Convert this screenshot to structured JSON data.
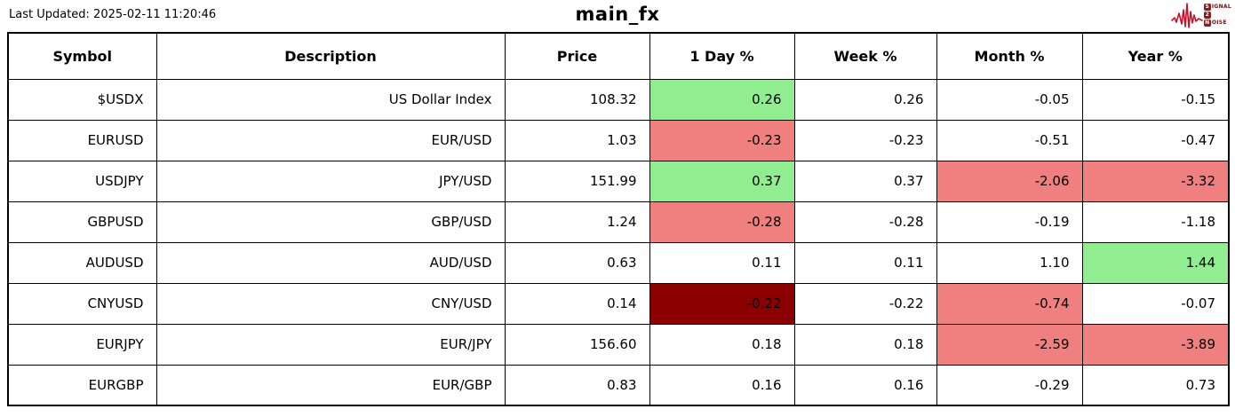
{
  "header": {
    "last_updated": "Last Updated: 2025-02-11 11:20:46",
    "title": "main_fx",
    "logo": {
      "lines": [
        {
          "initial": "S",
          "rest": "IGNAL"
        },
        {
          "initial": "2",
          "rest": ""
        },
        {
          "initial": "N",
          "rest": "OISE"
        }
      ],
      "waveform_color": "#c8102e"
    }
  },
  "colors": {
    "positive": "#90EE90",
    "negative": "#F08080",
    "strong_negative": "#8B0000"
  },
  "table": {
    "columns": [
      "Symbol",
      "Description",
      "Price",
      "1 Day %",
      "Week %",
      "Month %",
      "Year %"
    ],
    "rows": [
      {
        "cells": [
          {
            "value": "$USDX"
          },
          {
            "value": "US Dollar Index"
          },
          {
            "value": "108.32"
          },
          {
            "value": "0.26",
            "highlight": "positive"
          },
          {
            "value": "0.26"
          },
          {
            "value": "-0.05"
          },
          {
            "value": "-0.15"
          }
        ]
      },
      {
        "cells": [
          {
            "value": "EURUSD"
          },
          {
            "value": "EUR/USD"
          },
          {
            "value": "1.03"
          },
          {
            "value": "-0.23",
            "highlight": "negative"
          },
          {
            "value": "-0.23"
          },
          {
            "value": "-0.51"
          },
          {
            "value": "-0.47"
          }
        ]
      },
      {
        "cells": [
          {
            "value": "USDJPY"
          },
          {
            "value": "JPY/USD"
          },
          {
            "value": "151.99"
          },
          {
            "value": "0.37",
            "highlight": "positive"
          },
          {
            "value": "0.37"
          },
          {
            "value": "-2.06",
            "highlight": "negative"
          },
          {
            "value": "-3.32",
            "highlight": "negative"
          }
        ]
      },
      {
        "cells": [
          {
            "value": "GBPUSD"
          },
          {
            "value": "GBP/USD"
          },
          {
            "value": "1.24"
          },
          {
            "value": "-0.28",
            "highlight": "negative"
          },
          {
            "value": "-0.28"
          },
          {
            "value": "-0.19"
          },
          {
            "value": "-1.18"
          }
        ]
      },
      {
        "cells": [
          {
            "value": "AUDUSD"
          },
          {
            "value": "AUD/USD"
          },
          {
            "value": "0.63"
          },
          {
            "value": "0.11"
          },
          {
            "value": "0.11"
          },
          {
            "value": "1.10"
          },
          {
            "value": "1.44",
            "highlight": "positive"
          }
        ]
      },
      {
        "cells": [
          {
            "value": "CNYUSD"
          },
          {
            "value": "CNY/USD"
          },
          {
            "value": "0.14"
          },
          {
            "value": "-0.22",
            "highlight": "strong_negative"
          },
          {
            "value": "-0.22"
          },
          {
            "value": "-0.74",
            "highlight": "negative"
          },
          {
            "value": "-0.07"
          }
        ]
      },
      {
        "cells": [
          {
            "value": "EURJPY"
          },
          {
            "value": "EUR/JPY"
          },
          {
            "value": "156.60"
          },
          {
            "value": "0.18"
          },
          {
            "value": "0.18"
          },
          {
            "value": "-2.59",
            "highlight": "negative"
          },
          {
            "value": "-3.89",
            "highlight": "negative"
          }
        ]
      },
      {
        "cells": [
          {
            "value": "EURGBP"
          },
          {
            "value": "EUR/GBP"
          },
          {
            "value": "0.83"
          },
          {
            "value": "0.16"
          },
          {
            "value": "0.16"
          },
          {
            "value": "-0.29"
          },
          {
            "value": "0.73"
          }
        ]
      }
    ]
  },
  "chart_data": {
    "type": "table",
    "title": "main_fx",
    "last_updated": "2025-02-11 11:20:46",
    "columns": [
      "Symbol",
      "Description",
      "Price",
      "1 Day %",
      "Week %",
      "Month %",
      "Year %"
    ],
    "rows": [
      [
        "$USDX",
        "US Dollar Index",
        108.32,
        0.26,
        0.26,
        -0.05,
        -0.15
      ],
      [
        "EURUSD",
        "EUR/USD",
        1.03,
        -0.23,
        -0.23,
        -0.51,
        -0.47
      ],
      [
        "USDJPY",
        "JPY/USD",
        151.99,
        0.37,
        0.37,
        -2.06,
        -3.32
      ],
      [
        "GBPUSD",
        "GBP/USD",
        1.24,
        -0.28,
        -0.28,
        -0.19,
        -1.18
      ],
      [
        "AUDUSD",
        "AUD/USD",
        0.63,
        0.11,
        0.11,
        1.1,
        1.44
      ],
      [
        "CNYUSD",
        "CNY/USD",
        0.14,
        -0.22,
        -0.22,
        -0.74,
        -0.07
      ],
      [
        "EURJPY",
        "EUR/JPY",
        156.6,
        0.18,
        0.18,
        -2.59,
        -3.89
      ],
      [
        "EURGBP",
        "EUR/GBP",
        0.83,
        0.16,
        0.16,
        -0.29,
        0.73
      ]
    ],
    "highlighted_cells": [
      {
        "row": "$USDX",
        "column": "1 Day %",
        "color": "#90EE90"
      },
      {
        "row": "EURUSD",
        "column": "1 Day %",
        "color": "#F08080"
      },
      {
        "row": "USDJPY",
        "column": "1 Day %",
        "color": "#90EE90"
      },
      {
        "row": "USDJPY",
        "column": "Month %",
        "color": "#F08080"
      },
      {
        "row": "USDJPY",
        "column": "Year %",
        "color": "#F08080"
      },
      {
        "row": "GBPUSD",
        "column": "1 Day %",
        "color": "#F08080"
      },
      {
        "row": "AUDUSD",
        "column": "Year %",
        "color": "#90EE90"
      },
      {
        "row": "CNYUSD",
        "column": "1 Day %",
        "color": "#8B0000"
      },
      {
        "row": "CNYUSD",
        "column": "Month %",
        "color": "#F08080"
      },
      {
        "row": "EURJPY",
        "column": "Month %",
        "color": "#F08080"
      },
      {
        "row": "EURJPY",
        "column": "Year %",
        "color": "#F08080"
      }
    ]
  }
}
